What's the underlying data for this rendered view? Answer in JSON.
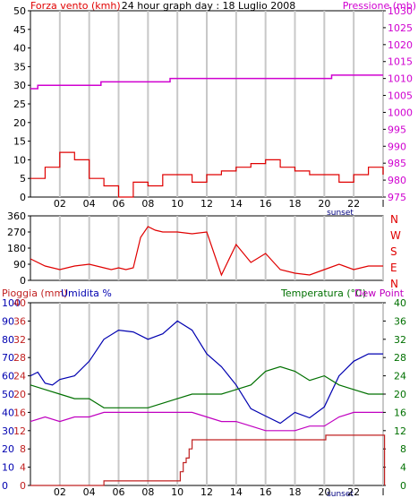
{
  "colors": {
    "wind": "#e00000",
    "pressure": "#d000d0",
    "rain": "#c02020",
    "humidity": "#0000b0",
    "temperature": "#007000",
    "dewpoint": "#c000c0",
    "gust_fill": "#00a000",
    "direction": "#e00000",
    "grid": "#c8c8c8"
  },
  "chart_data": [
    {
      "type": "line",
      "title": "24 hour graph day : 18 Luglio 2008",
      "ylabel": "Forza vento (kmh)",
      "y2label": "Pressione (mb)",
      "xticks": [
        "02",
        "04",
        "06",
        "08",
        "10",
        "12",
        "14",
        "16",
        "18",
        "20",
        "22",
        "l"
      ],
      "xrange": [
        0,
        24
      ],
      "sunset_label": "sunset",
      "sunset_hour": 20.7,
      "yticks_left": [
        0,
        5,
        10,
        15,
        20,
        25,
        30,
        35,
        40,
        45,
        50
      ],
      "yticks_right": [
        975,
        980,
        985,
        990,
        995,
        1000,
        1005,
        1010,
        1015,
        1020,
        1025,
        1030
      ],
      "ylim": [
        0,
        50
      ],
      "y2lim": [
        975,
        1030
      ],
      "series": [
        {
          "name": "Forza vento (kmh)",
          "x": [
            0,
            1,
            2,
            3,
            4,
            5,
            6,
            7,
            8,
            9,
            10,
            11,
            12,
            13,
            14,
            15,
            16,
            17,
            18,
            19,
            20,
            21,
            22,
            23,
            24
          ],
          "values": [
            5,
            8,
            12,
            10,
            5,
            3,
            0,
            4,
            3,
            6,
            6,
            4,
            6,
            7,
            8,
            9,
            10,
            8,
            7,
            6,
            6,
            4,
            6,
            8,
            6
          ]
        },
        {
          "name": "Pressione (mb)",
          "x": [
            0,
            0.5,
            4,
            4.8,
            6.5,
            7.5,
            8.5,
            9.5,
            10.5,
            16,
            18,
            20,
            20.5,
            22,
            24
          ],
          "values": [
            1007,
            1008,
            1008,
            1009,
            1009,
            1009,
            1009,
            1010,
            1010,
            1010,
            1010,
            1010,
            1011,
            1011,
            1011
          ]
        }
      ]
    },
    {
      "type": "scatter",
      "title": "",
      "yticks": [
        0,
        90,
        180,
        270,
        360
      ],
      "direction_labels": [
        "N",
        "W",
        "S",
        "E",
        "N"
      ],
      "ylim": [
        0,
        360
      ],
      "xrange": [
        0,
        24
      ],
      "series": [
        {
          "name": "wind direction",
          "x": [
            0,
            1,
            2,
            3,
            4,
            5,
            5.5,
            6,
            6.5,
            7,
            7.5,
            8,
            8.5,
            9,
            10,
            11,
            12,
            13,
            14,
            15,
            16,
            17,
            18,
            19,
            20,
            21,
            22,
            23,
            24
          ],
          "values": [
            120,
            80,
            60,
            80,
            90,
            70,
            60,
            70,
            60,
            70,
            240,
            300,
            280,
            270,
            270,
            260,
            270,
            30,
            200,
            100,
            150,
            60,
            40,
            30,
            60,
            90,
            60,
            80,
            80
          ]
        }
      ]
    },
    {
      "type": "line",
      "title": "",
      "labels": {
        "rain": "Pioggia (mm)",
        "humidity": "Umidita %",
        "temperature": "Temperatura (°C)",
        "dewpoint": "Dew Point"
      },
      "xticks": [
        "02",
        "04",
        "06",
        "08",
        "10",
        "12",
        "14",
        "16",
        "18",
        "20",
        "22",
        "l"
      ],
      "xrange": [
        0,
        24
      ],
      "sunset_label": "sunset",
      "sunset_hour": 20.7,
      "yticks_rain": [
        0,
        4,
        8,
        12,
        16,
        20,
        24,
        28,
        32,
        36,
        40
      ],
      "yticks_humidity": [
        0,
        10,
        20,
        30,
        40,
        50,
        60,
        70,
        80,
        90,
        100
      ],
      "yticks_temperature": [
        0,
        4,
        8,
        12,
        16,
        20,
        24,
        28,
        32,
        36,
        40
      ],
      "series": [
        {
          "name": "Umidita %",
          "x": [
            0,
            0.5,
            1,
            1.5,
            2,
            3,
            4,
            5,
            6,
            7,
            8,
            9,
            10,
            11,
            12,
            13,
            14,
            15,
            16,
            17,
            18,
            19,
            20,
            21,
            22,
            23,
            24
          ],
          "values": [
            60,
            62,
            56,
            55,
            58,
            60,
            68,
            80,
            85,
            84,
            80,
            83,
            90,
            85,
            72,
            65,
            55,
            42,
            38,
            34,
            40,
            37,
            43,
            60,
            68,
            72,
            72
          ]
        },
        {
          "name": "Temperatura (°C)",
          "x": [
            0,
            1,
            2,
            3,
            4,
            5,
            6,
            7,
            8,
            9,
            10,
            11,
            12,
            13,
            14,
            15,
            16,
            17,
            18,
            19,
            20,
            21,
            22,
            23,
            24
          ],
          "values": [
            22,
            21,
            20,
            19,
            19,
            17,
            17,
            17,
            17,
            18,
            19,
            20,
            20,
            20,
            21,
            22,
            25,
            26,
            25,
            23,
            24,
            22,
            21,
            20,
            20
          ]
        },
        {
          "name": "Dew Point",
          "x": [
            0,
            1,
            2,
            3,
            4,
            5,
            6,
            7,
            8,
            9,
            10,
            11,
            12,
            13,
            14,
            15,
            16,
            17,
            18,
            19,
            20,
            21,
            22,
            23,
            24
          ],
          "values": [
            14,
            15,
            14,
            15,
            15,
            16,
            16,
            16,
            16,
            16,
            16,
            16,
            15,
            14,
            14,
            13,
            12,
            12,
            12,
            13,
            13,
            15,
            16,
            16,
            16
          ]
        },
        {
          "name": "Pioggia (mm)",
          "x": [
            0,
            4,
            5,
            10,
            10.2,
            10.4,
            10.6,
            10.8,
            11,
            20,
            20.1,
            24,
            24.1
          ],
          "values": [
            0,
            0,
            1,
            1,
            3,
            5,
            6,
            8,
            10,
            10,
            11,
            11,
            0
          ]
        }
      ]
    }
  ]
}
